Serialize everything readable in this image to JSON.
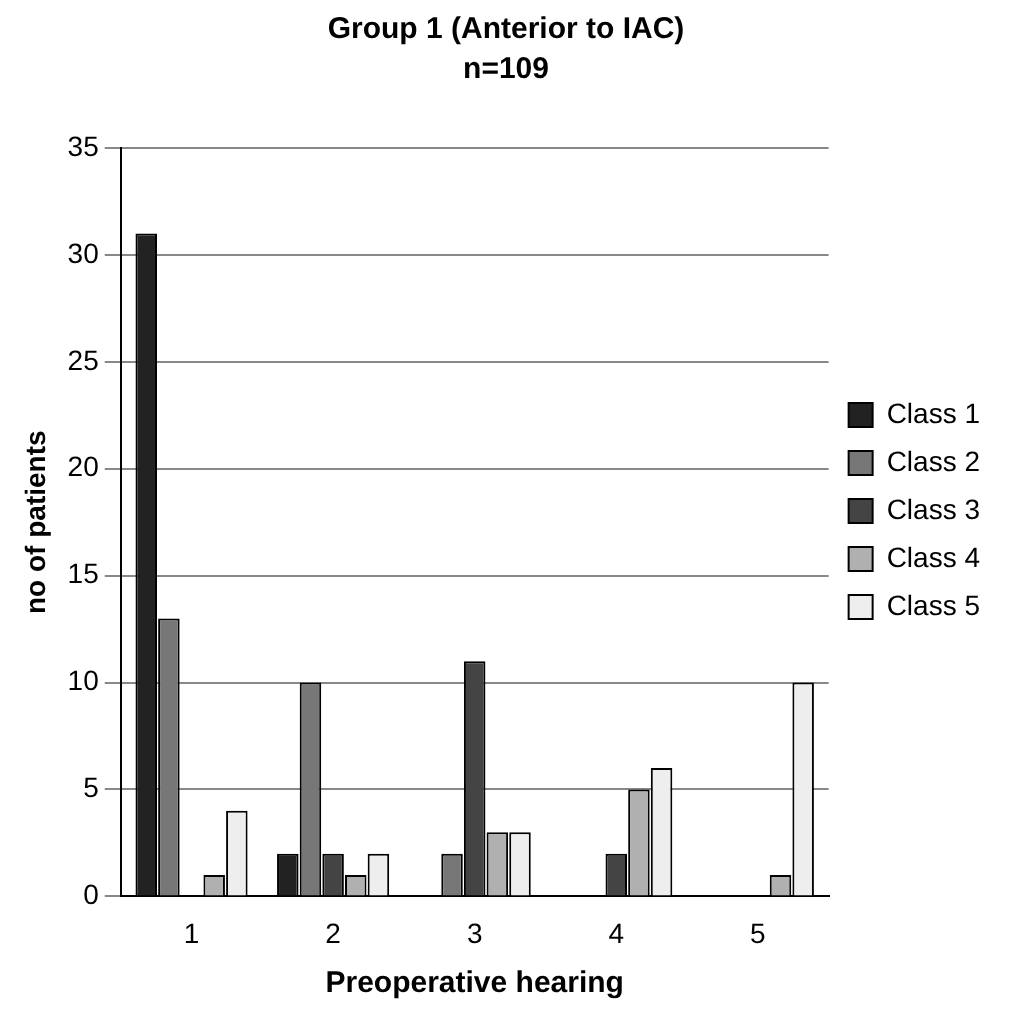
{
  "chart_data": {
    "type": "bar",
    "title": "Group 1 (Anterior to IAC)",
    "subtitle": "n=109",
    "xlabel": "Preoperative hearing",
    "ylabel": "no of patients",
    "categories": [
      "1",
      "2",
      "3",
      "4",
      "5"
    ],
    "series": [
      {
        "name": "Class 1",
        "color": "#222222",
        "values": [
          31,
          2,
          0,
          0,
          0
        ]
      },
      {
        "name": "Class 2",
        "color": "#777777",
        "values": [
          13,
          10,
          2,
          0,
          0
        ]
      },
      {
        "name": "Class 3",
        "color": "#444444",
        "values": [
          0,
          2,
          11,
          2,
          0
        ]
      },
      {
        "name": "Class 4",
        "color": "#b0b0b0",
        "values": [
          1,
          1,
          3,
          5,
          1
        ]
      },
      {
        "name": "Class 5",
        "color": "#eeeeee",
        "values": [
          4,
          2,
          3,
          6,
          10
        ]
      }
    ],
    "ylim": [
      0,
      35
    ],
    "yticks": [
      0,
      5,
      10,
      15,
      20,
      25,
      30,
      35
    ],
    "grid": "y",
    "legend": "right"
  }
}
